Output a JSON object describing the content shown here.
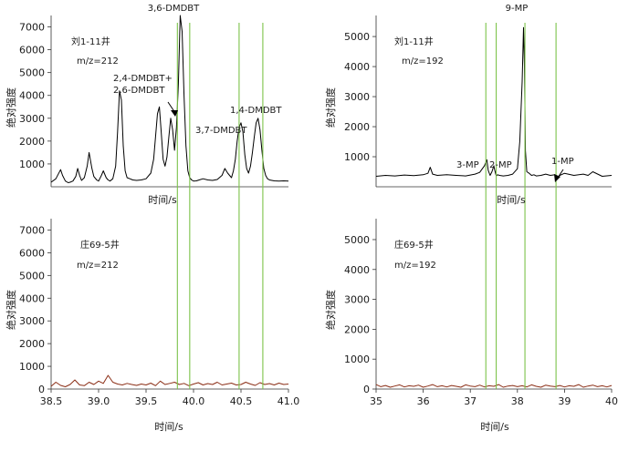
{
  "chart_data": [
    {
      "id": "top-left",
      "type": "line",
      "sample": "刘1-11井",
      "mz": "m/z=212",
      "ylabel": "绝对强度",
      "xlabel": "时间/s",
      "xlim": [
        38.5,
        41.0
      ],
      "ylim": [
        0,
        7500
      ],
      "yticks": [
        1000,
        2000,
        3000,
        4000,
        5000,
        6000,
        7000
      ],
      "xticks": [],
      "series": [
        {
          "color": "#000000",
          "x": [
            38.5,
            38.55,
            38.6,
            38.62,
            38.65,
            38.68,
            38.7,
            38.73,
            38.76,
            38.78,
            38.8,
            38.82,
            38.85,
            38.88,
            38.9,
            38.93,
            38.95,
            38.98,
            39.0,
            39.03,
            39.05,
            39.08,
            39.1,
            39.12,
            39.15,
            39.18,
            39.2,
            39.22,
            39.24,
            39.26,
            39.28,
            39.3,
            39.33,
            39.36,
            39.4,
            39.45,
            39.5,
            39.55,
            39.58,
            39.6,
            39.62,
            39.64,
            39.66,
            39.68,
            39.7,
            39.72,
            39.74,
            39.76,
            39.78,
            39.8,
            39.82,
            39.84,
            39.86,
            39.88,
            39.9,
            39.92,
            39.94,
            39.96,
            39.98,
            40.0,
            40.03,
            40.06,
            40.1,
            40.15,
            40.2,
            40.25,
            40.3,
            40.33,
            40.36,
            40.4,
            40.42,
            40.44,
            40.46,
            40.48,
            40.5,
            40.52,
            40.54,
            40.56,
            40.58,
            40.6,
            40.62,
            40.64,
            40.66,
            40.68,
            40.7,
            40.72,
            40.74,
            40.76,
            40.78,
            40.8,
            40.85,
            40.9,
            40.95,
            41.0
          ],
          "y": [
            200,
            350,
            750,
            500,
            250,
            180,
            200,
            250,
            450,
            800,
            500,
            280,
            400,
            900,
            1500,
            800,
            450,
            300,
            250,
            500,
            700,
            400,
            300,
            250,
            350,
            900,
            2400,
            4200,
            3800,
            1800,
            700,
            400,
            350,
            300,
            280,
            300,
            350,
            600,
            1200,
            2200,
            3200,
            3500,
            2400,
            1200,
            900,
            1300,
            2200,
            3000,
            2500,
            1600,
            2600,
            4500,
            7500,
            6800,
            4000,
            1800,
            700,
            400,
            300,
            250,
            260,
            300,
            350,
            300,
            280,
            320,
            500,
            800,
            600,
            400,
            700,
            1200,
            2000,
            2600,
            2800,
            2400,
            1400,
            800,
            600,
            900,
            1500,
            2200,
            2800,
            3000,
            2500,
            1600,
            800,
            500,
            350,
            300,
            260,
            250,
            260,
            250
          ]
        }
      ],
      "annotations": [
        "3,6-DMDBT",
        "2,4-DMDBT+",
        "2,6-DMDBT",
        "3,7-DMDBT",
        "1,4-DMDBT"
      ]
    },
    {
      "id": "top-right",
      "type": "line",
      "sample": "刘1-11井",
      "mz": "m/z=192",
      "ylabel": "绝对强度",
      "xlabel": "时间/s",
      "xlim": [
        35,
        40
      ],
      "ylim": [
        0,
        5700
      ],
      "yticks": [
        1000,
        2000,
        3000,
        4000,
        5000
      ],
      "xticks": [],
      "series": [
        {
          "color": "#000000",
          "x": [
            35.0,
            35.2,
            35.4,
            35.6,
            35.8,
            36.0,
            36.1,
            36.15,
            36.2,
            36.3,
            36.5,
            36.7,
            36.9,
            37.1,
            37.2,
            37.3,
            37.35,
            37.38,
            37.42,
            37.46,
            37.5,
            37.52,
            37.55,
            37.58,
            37.62,
            37.7,
            37.8,
            37.9,
            38.0,
            38.05,
            38.1,
            38.13,
            38.15,
            38.17,
            38.2,
            38.25,
            38.3,
            38.35,
            38.4,
            38.5,
            38.6,
            38.7,
            38.8,
            38.85,
            38.9,
            39.0,
            39.2,
            39.4,
            39.5,
            39.6,
            39.8,
            40.0
          ],
          "y": [
            350,
            380,
            360,
            390,
            370,
            400,
            450,
            650,
            420,
            380,
            400,
            380,
            360,
            420,
            480,
            700,
            900,
            550,
            380,
            500,
            700,
            550,
            360,
            400,
            380,
            360,
            380,
            420,
            600,
            1500,
            3500,
            5300,
            4000,
            1200,
            500,
            450,
            380,
            400,
            360,
            380,
            420,
            380,
            400,
            300,
            380,
            450,
            380,
            420,
            380,
            500,
            350,
            380
          ]
        }
      ],
      "annotations": [
        "9-MP",
        "3-MP",
        "2-MP",
        "1-MP"
      ]
    },
    {
      "id": "bottom-left",
      "type": "line",
      "sample": "庄69-5井",
      "mz": "m/z=212",
      "ylabel": "绝对强度",
      "xlabel": "时间/s",
      "xlim": [
        38.5,
        41.0
      ],
      "ylim": [
        0,
        7500
      ],
      "yticks": [
        0,
        1000,
        2000,
        3000,
        4000,
        5000,
        6000,
        7000
      ],
      "xticks": [
        38.5,
        39.0,
        39.5,
        40.0,
        40.5,
        41.0
      ],
      "xticklabels": [
        "38.5",
        "39.0",
        "39.5",
        "40.0",
        "40.5",
        "41.0"
      ],
      "series": [
        {
          "color": "#8b2e16",
          "x": [
            38.5,
            38.55,
            38.6,
            38.65,
            38.7,
            38.75,
            38.8,
            38.85,
            38.9,
            38.95,
            39.0,
            39.05,
            39.1,
            39.15,
            39.2,
            39.25,
            39.3,
            39.35,
            39.4,
            39.45,
            39.5,
            39.55,
            39.6,
            39.65,
            39.7,
            39.75,
            39.8,
            39.85,
            39.9,
            39.95,
            40.0,
            40.05,
            40.1,
            40.15,
            40.2,
            40.25,
            40.3,
            40.35,
            40.4,
            40.45,
            40.5,
            40.55,
            40.6,
            40.65,
            40.7,
            40.75,
            40.8,
            40.85,
            40.9,
            40.95,
            41.0
          ],
          "y": [
            120,
            300,
            160,
            100,
            200,
            400,
            180,
            150,
            300,
            200,
            350,
            250,
            600,
            300,
            220,
            180,
            250,
            200,
            160,
            220,
            180,
            260,
            150,
            350,
            200,
            250,
            300,
            200,
            250,
            150,
            220,
            280,
            180,
            240,
            200,
            300,
            180,
            220,
            260,
            180,
            200,
            300,
            220,
            160,
            280,
            200,
            240,
            180,
            260,
            200,
            220
          ]
        }
      ]
    },
    {
      "id": "bottom-right",
      "type": "line",
      "sample": "庄69-5井",
      "mz": "m/z=192",
      "ylabel": "绝对强度",
      "xlabel": "时间/s",
      "xlim": [
        35,
        40
      ],
      "ylim": [
        0,
        5700
      ],
      "yticks": [
        0,
        1000,
        2000,
        3000,
        4000,
        5000
      ],
      "xticks": [
        35,
        36,
        37,
        38,
        39,
        40
      ],
      "xticklabels": [
        "35",
        "36",
        "37",
        "38",
        "39",
        "40"
      ],
      "series": [
        {
          "color": "#8b2e16",
          "x": [
            35.0,
            35.1,
            35.2,
            35.3,
            35.4,
            35.5,
            35.6,
            35.7,
            35.8,
            35.9,
            36.0,
            36.1,
            36.2,
            36.3,
            36.4,
            36.5,
            36.6,
            36.7,
            36.8,
            36.9,
            37.0,
            37.1,
            37.2,
            37.3,
            37.4,
            37.5,
            37.6,
            37.7,
            37.8,
            37.9,
            38.0,
            38.1,
            38.2,
            38.3,
            38.4,
            38.5,
            38.6,
            38.7,
            38.8,
            38.9,
            39.0,
            39.1,
            39.2,
            39.3,
            39.4,
            39.5,
            39.6,
            39.7,
            39.8,
            39.9,
            40.0
          ],
          "y": [
            150,
            80,
            120,
            60,
            100,
            140,
            70,
            110,
            90,
            130,
            60,
            100,
            150,
            80,
            110,
            70,
            120,
            90,
            60,
            140,
            100,
            80,
            130,
            70,
            110,
            90,
            150,
            60,
            100,
            120,
            80,
            110,
            70,
            140,
            90,
            60,
            130,
            100,
            80,
            120,
            70,
            110,
            90,
            150,
            60,
            100,
            130,
            80,
            110,
            70,
            120
          ]
        }
      ]
    }
  ],
  "links": {
    "color": "#7cc34a",
    "left_x": [
      39.83,
      39.96,
      40.48,
      40.73
    ],
    "right_x": [
      37.33,
      37.55,
      38.16,
      38.82
    ]
  }
}
